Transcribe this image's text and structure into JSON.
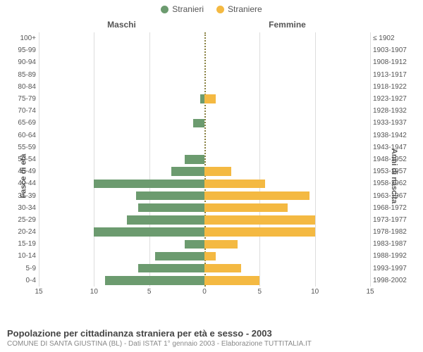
{
  "legend": {
    "male_label": "Stranieri",
    "female_label": "Straniere"
  },
  "titles": {
    "male_col": "Maschi",
    "female_col": "Femmine",
    "y_left": "Fasce di età",
    "y_right": "Anni di nascita",
    "footer_main": "Popolazione per cittadinanza straniera per età e sesso - 2003",
    "footer_sub": "COMUNE DI SANTA GIUSTINA (BL) - Dati ISTAT 1° gennaio 2003 - Elaborazione TUTTITALIA.IT"
  },
  "colors": {
    "male": "#6c9b6f",
    "female": "#f4b942",
    "grid": "#dddddd",
    "center_line": "#888040",
    "text": "#555555",
    "background": "#ffffff"
  },
  "chart": {
    "type": "population-pyramid",
    "xmax": 15,
    "xticks": [
      0,
      5,
      10,
      15
    ],
    "age_labels": [
      "100+",
      "95-99",
      "90-94",
      "85-89",
      "80-84",
      "75-79",
      "70-74",
      "65-69",
      "60-64",
      "55-59",
      "50-54",
      "45-49",
      "40-44",
      "35-39",
      "30-34",
      "25-29",
      "20-24",
      "15-19",
      "10-14",
      "5-9",
      "0-4"
    ],
    "birth_labels": [
      "≤ 1902",
      "1903-1907",
      "1908-1912",
      "1913-1917",
      "1918-1922",
      "1923-1927",
      "1928-1932",
      "1933-1937",
      "1938-1942",
      "1943-1947",
      "1948-1952",
      "1953-1957",
      "1958-1962",
      "1963-1967",
      "1968-1972",
      "1973-1977",
      "1978-1982",
      "1983-1987",
      "1988-1992",
      "1993-1997",
      "1998-2002"
    ],
    "male": [
      0,
      0,
      0,
      0,
      0,
      0.4,
      0,
      1,
      0,
      0,
      1.8,
      3,
      10,
      6.2,
      6,
      7,
      10,
      1.8,
      4.5,
      6,
      9
    ],
    "female": [
      0,
      0,
      0,
      0,
      0,
      1,
      0,
      0,
      0,
      0,
      0,
      2.4,
      5.5,
      9.5,
      7.5,
      10,
      10,
      3,
      1,
      3.3,
      5
    ]
  },
  "style": {
    "label_fontsize": 10,
    "title_fontsize": 12,
    "footer_title_fontsize": 13,
    "footer_sub_fontsize": 10,
    "bar_height_pct": 72
  }
}
